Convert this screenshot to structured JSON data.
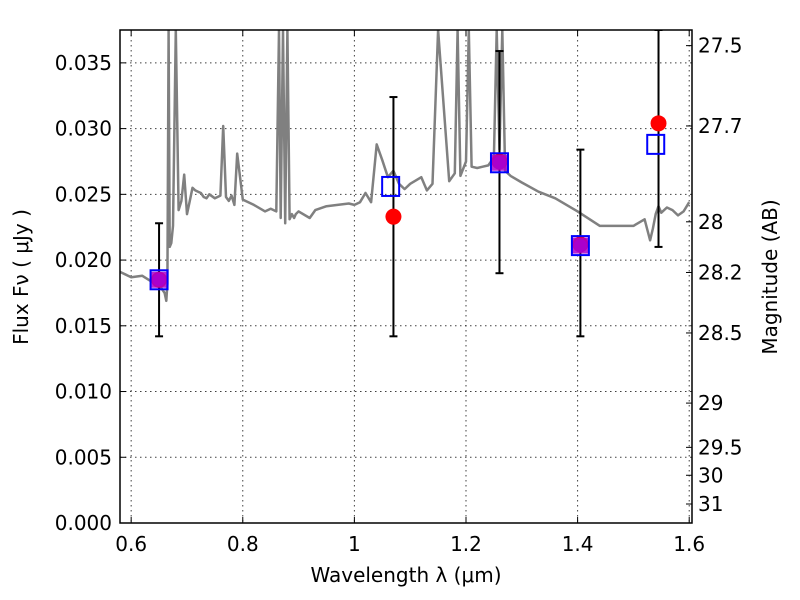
{
  "chart_data": {
    "type": "scatter",
    "xlabel": "Wavelength  λ (μm)",
    "ylabel": "Flux  Fν  ( μJy )",
    "y2label": "Magnitude (AB)",
    "xlim": [
      0.58,
      1.605
    ],
    "ylim": [
      0.0,
      0.0375
    ],
    "grid": true,
    "x_ticks": [
      0.6,
      0.8,
      1.0,
      1.2,
      1.4,
      1.6
    ],
    "x_tick_labels": [
      "0.6",
      "0.8",
      "1",
      "1.2",
      "1.4",
      "1.6"
    ],
    "y_ticks": [
      0.0,
      0.005,
      0.01,
      0.015,
      0.02,
      0.025,
      0.03,
      0.035
    ],
    "y_tick_labels": [
      "0.000",
      "0.005",
      "0.010",
      "0.015",
      "0.020",
      "0.025",
      "0.030",
      "0.035"
    ],
    "y2_ticks": [
      27.5,
      27.7,
      28,
      28.2,
      28.5,
      29,
      29.5,
      30,
      31
    ],
    "y2_tick_labels": [
      "27.5",
      "27.7",
      "28",
      "28.2",
      "28.5",
      "29",
      "29.5",
      "30",
      "31"
    ],
    "colors": {
      "spectrum": "#808080",
      "observed": "#ff0000",
      "model": "#0000ff",
      "errorbar": "#000000",
      "overlap": "#aa00cc"
    },
    "series": [
      {
        "kind": "model_spectrum",
        "x": [
          0.58,
          0.6,
          0.62,
          0.635,
          0.648,
          0.655,
          0.66,
          0.663,
          0.665,
          0.667,
          0.669,
          0.672,
          0.675,
          0.68,
          0.685,
          0.69,
          0.695,
          0.7,
          0.705,
          0.71,
          0.715,
          0.72,
          0.725,
          0.73,
          0.735,
          0.74,
          0.75,
          0.76,
          0.765,
          0.77,
          0.775,
          0.78,
          0.785,
          0.79,
          0.8,
          0.82,
          0.84,
          0.85,
          0.86,
          0.865,
          0.868,
          0.872,
          0.876,
          0.88,
          0.884,
          0.888,
          0.892,
          0.895,
          0.9,
          0.92,
          0.93,
          0.95,
          0.97,
          0.99,
          1.0,
          1.01,
          1.02,
          1.03,
          1.04,
          1.05,
          1.06,
          1.07,
          1.08,
          1.09,
          1.1,
          1.12,
          1.13,
          1.14,
          1.15,
          1.17,
          1.18,
          1.185,
          1.19,
          1.2,
          1.205,
          1.21,
          1.22,
          1.23,
          1.24,
          1.25,
          1.255,
          1.26,
          1.265,
          1.27,
          1.28,
          1.3,
          1.33,
          1.36,
          1.4,
          1.44,
          1.48,
          1.5,
          1.52,
          1.53,
          1.535,
          1.54,
          1.545,
          1.55,
          1.56,
          1.57,
          1.58,
          1.59,
          1.6
        ],
        "y": [
          0.0191,
          0.0187,
          0.0188,
          0.0184,
          0.0183,
          0.0178,
          0.0175,
          0.0169,
          0.0182,
          0.0375,
          0.021,
          0.0213,
          0.0226,
          0.0375,
          0.0238,
          0.0245,
          0.0265,
          0.0235,
          0.0245,
          0.0255,
          0.0253,
          0.0252,
          0.0251,
          0.0248,
          0.0247,
          0.025,
          0.0247,
          0.0249,
          0.0302,
          0.0248,
          0.0245,
          0.0249,
          0.0242,
          0.0281,
          0.0246,
          0.0242,
          0.0237,
          0.0239,
          0.0237,
          0.0375,
          0.0232,
          0.0375,
          0.0228,
          0.0375,
          0.0231,
          0.0235,
          0.0232,
          0.0235,
          0.0237,
          0.0232,
          0.0238,
          0.0241,
          0.0242,
          0.0243,
          0.0242,
          0.0244,
          0.0251,
          0.0244,
          0.0288,
          0.0276,
          0.0263,
          0.0268,
          0.0258,
          0.0254,
          0.0258,
          0.0263,
          0.0253,
          0.0258,
          0.0375,
          0.026,
          0.0266,
          0.0375,
          0.0264,
          0.0275,
          0.0375,
          0.0271,
          0.027,
          0.0271,
          0.0272,
          0.0278,
          0.0375,
          0.0284,
          0.0375,
          0.0268,
          0.0264,
          0.0259,
          0.0252,
          0.0247,
          0.0237,
          0.0226,
          0.0226,
          0.0226,
          0.0231,
          0.0215,
          0.0224,
          0.0235,
          0.0241,
          0.0236,
          0.024,
          0.0238,
          0.0234,
          0.0237,
          0.0244
        ]
      },
      {
        "kind": "observed_points",
        "x": [
          0.65,
          1.07,
          1.26,
          1.405,
          1.545
        ],
        "y": [
          0.0185,
          0.0233,
          0.0275,
          0.0212,
          0.0304
        ],
        "yerr_low": [
          0.0142,
          0.0142,
          0.019,
          0.0142,
          0.021
        ],
        "yerr_high": [
          0.0228,
          0.0324,
          0.0359,
          0.0284,
          0.0375
        ]
      },
      {
        "kind": "model_photometry",
        "x": [
          0.65,
          1.065,
          1.26,
          1.405,
          1.54
        ],
        "y": [
          0.0185,
          0.0256,
          0.0274,
          0.0211,
          0.0288
        ]
      }
    ]
  }
}
